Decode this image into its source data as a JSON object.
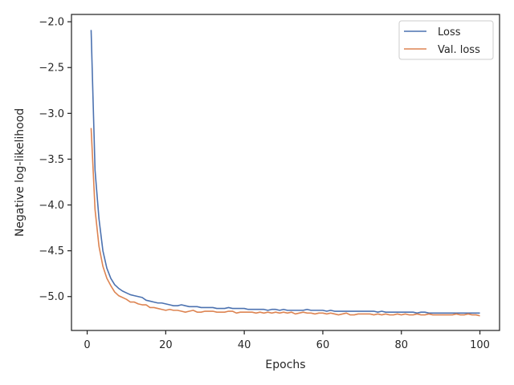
{
  "chart_data": {
    "type": "line",
    "xlabel": "Epochs",
    "ylabel": "Negative log-likelihood",
    "xlim": [
      -4,
      105
    ],
    "ylim": [
      -5.37,
      -1.92
    ],
    "x_ticks": [
      0,
      20,
      40,
      60,
      80,
      100
    ],
    "y_ticks": [
      -5.0,
      -4.5,
      -4.0,
      -3.5,
      -3.0,
      -2.5,
      -2.0
    ],
    "x_tick_labels": [
      "0",
      "20",
      "40",
      "60",
      "80",
      "100"
    ],
    "y_tick_labels": [
      "−5.0",
      "−4.5",
      "−4.0",
      "−3.5",
      "−3.0",
      "−2.5",
      "−2.0"
    ],
    "grid": false,
    "legend_position": "top-right",
    "series": [
      {
        "name": "Loss",
        "color": "#4c72b0",
        "x": [
          1,
          2,
          3,
          4,
          5,
          6,
          7,
          8,
          9,
          10,
          11,
          12,
          13,
          14,
          15,
          16,
          17,
          18,
          19,
          20,
          21,
          22,
          23,
          24,
          25,
          26,
          27,
          28,
          29,
          30,
          31,
          32,
          33,
          34,
          35,
          36,
          37,
          38,
          39,
          40,
          41,
          42,
          43,
          44,
          45,
          46,
          47,
          48,
          49,
          50,
          51,
          52,
          53,
          54,
          55,
          56,
          57,
          58,
          59,
          60,
          61,
          62,
          63,
          64,
          65,
          66,
          67,
          68,
          69,
          70,
          71,
          72,
          73,
          74,
          75,
          76,
          77,
          78,
          79,
          80,
          81,
          82,
          83,
          84,
          85,
          86,
          87,
          88,
          89,
          90,
          91,
          92,
          93,
          94,
          95,
          96,
          97,
          98,
          99,
          100
        ],
        "y": [
          -2.09,
          -3.62,
          -4.15,
          -4.5,
          -4.69,
          -4.8,
          -4.87,
          -4.91,
          -4.94,
          -4.96,
          -4.98,
          -4.99,
          -5.0,
          -5.01,
          -5.04,
          -5.05,
          -5.06,
          -5.07,
          -5.07,
          -5.08,
          -5.09,
          -5.1,
          -5.1,
          -5.09,
          -5.1,
          -5.11,
          -5.11,
          -5.11,
          -5.12,
          -5.12,
          -5.12,
          -5.12,
          -5.13,
          -5.13,
          -5.13,
          -5.12,
          -5.13,
          -5.13,
          -5.13,
          -5.13,
          -5.14,
          -5.14,
          -5.14,
          -5.14,
          -5.14,
          -5.15,
          -5.14,
          -5.14,
          -5.15,
          -5.14,
          -5.15,
          -5.15,
          -5.15,
          -5.15,
          -5.15,
          -5.14,
          -5.15,
          -5.15,
          -5.15,
          -5.15,
          -5.16,
          -5.15,
          -5.16,
          -5.16,
          -5.16,
          -5.16,
          -5.16,
          -5.16,
          -5.16,
          -5.16,
          -5.16,
          -5.16,
          -5.16,
          -5.17,
          -5.16,
          -5.17,
          -5.17,
          -5.17,
          -5.17,
          -5.17,
          -5.17,
          -5.17,
          -5.17,
          -5.18,
          -5.17,
          -5.17,
          -5.18,
          -5.18,
          -5.18,
          -5.18,
          -5.18,
          -5.18,
          -5.18,
          -5.18,
          -5.18,
          -5.18,
          -5.18,
          -5.18,
          -5.18,
          -5.18
        ]
      },
      {
        "name": "Val. loss",
        "color": "#dd8452",
        "x": [
          1,
          2,
          3,
          4,
          5,
          6,
          7,
          8,
          9,
          10,
          11,
          12,
          13,
          14,
          15,
          16,
          17,
          18,
          19,
          20,
          21,
          22,
          23,
          24,
          25,
          26,
          27,
          28,
          29,
          30,
          31,
          32,
          33,
          34,
          35,
          36,
          37,
          38,
          39,
          40,
          41,
          42,
          43,
          44,
          45,
          46,
          47,
          48,
          49,
          50,
          51,
          52,
          53,
          54,
          55,
          56,
          57,
          58,
          59,
          60,
          61,
          62,
          63,
          64,
          65,
          66,
          67,
          68,
          69,
          70,
          71,
          72,
          73,
          74,
          75,
          76,
          77,
          78,
          79,
          80,
          81,
          82,
          83,
          84,
          85,
          86,
          87,
          88,
          89,
          90,
          91,
          92,
          93,
          94,
          95,
          96,
          97,
          98,
          99,
          100
        ],
        "y": [
          -3.16,
          -4.05,
          -4.45,
          -4.67,
          -4.8,
          -4.88,
          -4.95,
          -4.99,
          -5.01,
          -5.03,
          -5.06,
          -5.06,
          -5.08,
          -5.09,
          -5.09,
          -5.12,
          -5.12,
          -5.13,
          -5.14,
          -5.15,
          -5.14,
          -5.15,
          -5.15,
          -5.16,
          -5.17,
          -5.16,
          -5.15,
          -5.17,
          -5.17,
          -5.16,
          -5.16,
          -5.16,
          -5.17,
          -5.17,
          -5.17,
          -5.16,
          -5.16,
          -5.18,
          -5.17,
          -5.17,
          -5.17,
          -5.17,
          -5.18,
          -5.17,
          -5.18,
          -5.17,
          -5.18,
          -5.17,
          -5.18,
          -5.17,
          -5.18,
          -5.17,
          -5.19,
          -5.18,
          -5.17,
          -5.18,
          -5.18,
          -5.19,
          -5.18,
          -5.18,
          -5.19,
          -5.18,
          -5.19,
          -5.2,
          -5.19,
          -5.18,
          -5.2,
          -5.2,
          -5.19,
          -5.19,
          -5.19,
          -5.19,
          -5.2,
          -5.19,
          -5.2,
          -5.19,
          -5.2,
          -5.2,
          -5.19,
          -5.2,
          -5.19,
          -5.2,
          -5.2,
          -5.19,
          -5.2,
          -5.2,
          -5.19,
          -5.2,
          -5.2,
          -5.2,
          -5.2,
          -5.2,
          -5.2,
          -5.19,
          -5.2,
          -5.2,
          -5.19,
          -5.2,
          -5.2,
          -5.21
        ]
      }
    ]
  }
}
